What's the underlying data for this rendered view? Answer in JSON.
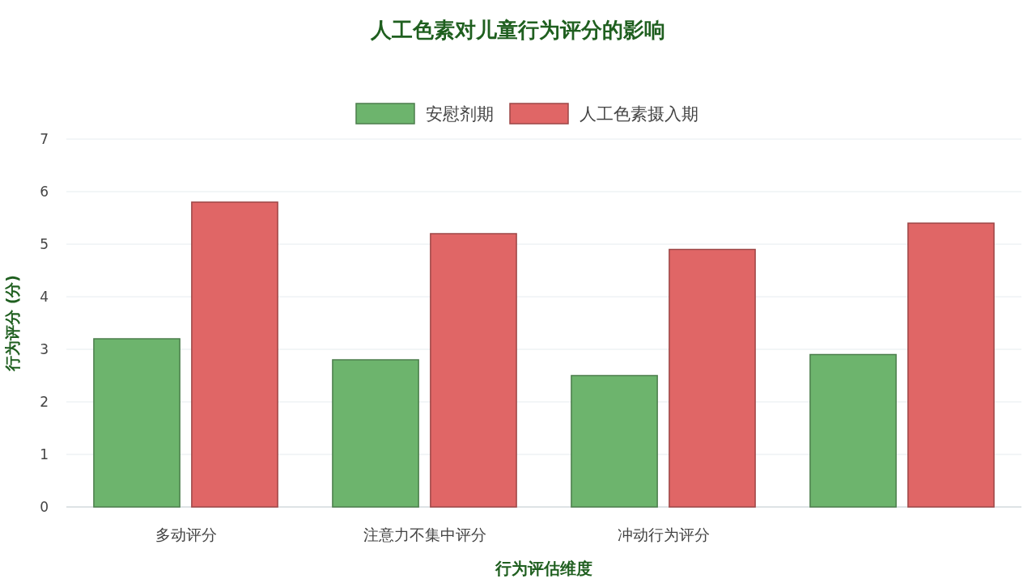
{
  "chart_data": {
    "type": "bar",
    "title": "人工色素对儿童行为评分的影响",
    "xlabel": "行为评估维度",
    "ylabel": "行为评分 (分)",
    "categories": [
      "多动评分",
      "注意力不集中评分",
      "冲动行为评分",
      null
    ],
    "series": [
      {
        "name": "安慰剂期",
        "color": "#6db46d",
        "values": [
          3.2,
          2.8,
          2.5,
          2.9
        ]
      },
      {
        "name": "人工色素摄入期",
        "color": "#e06666",
        "values": [
          5.8,
          5.2,
          4.9,
          5.4
        ]
      }
    ],
    "ylim": [
      0,
      7
    ],
    "yticks": [
      0,
      1,
      2,
      3,
      4,
      5,
      6,
      7
    ],
    "grid": "y",
    "legend": "top"
  }
}
